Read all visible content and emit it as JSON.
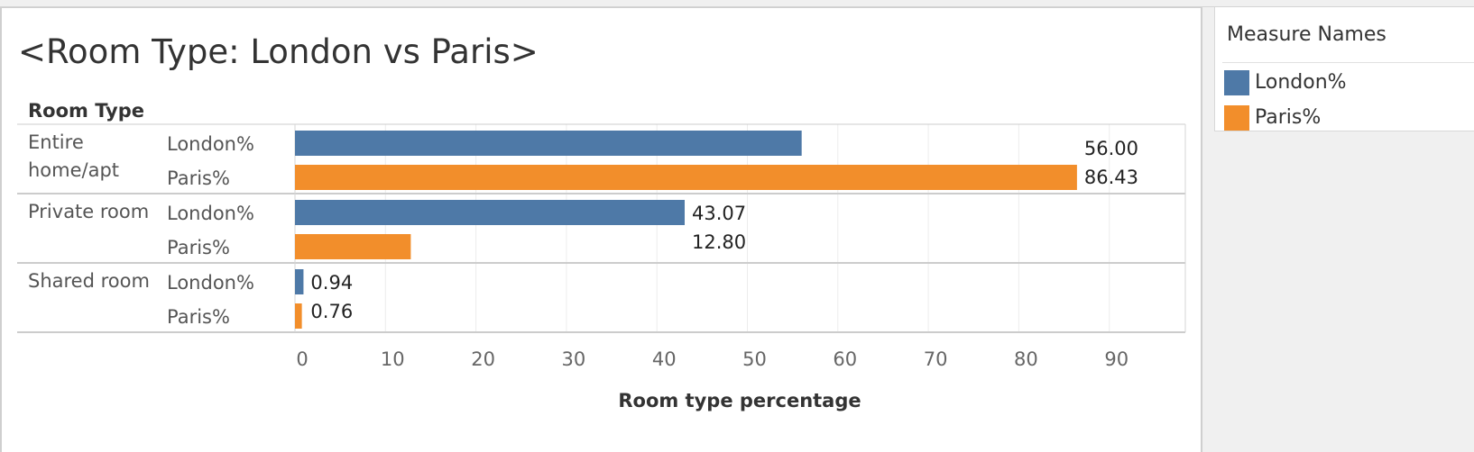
{
  "title": "<Room Type: London vs Paris>",
  "legend": {
    "title": "Measure Names",
    "items": [
      {
        "label": "London%",
        "color": "#4e79a7"
      },
      {
        "label": "Paris%",
        "color": "#f28e2b"
      }
    ]
  },
  "chart_data": {
    "type": "bar",
    "orientation": "horizontal",
    "title": "<Room Type: London vs Paris>",
    "row_header": "Room Type",
    "xlabel": "Room type percentage",
    "xlim": [
      0,
      98
    ],
    "xticks": [
      0,
      10,
      20,
      30,
      40,
      50,
      60,
      70,
      80,
      90
    ],
    "grid": true,
    "legend_position": "right",
    "categories": [
      {
        "name": "Entire home/apt",
        "lines": [
          "Entire",
          "home/apt"
        ]
      },
      {
        "name": "Private room",
        "lines": [
          "Private room"
        ]
      },
      {
        "name": "Shared room",
        "lines": [
          "Shared room"
        ]
      }
    ],
    "series": [
      {
        "name": "London%",
        "color": "#4e79a7",
        "values": [
          56.0,
          43.07,
          0.94
        ],
        "labels": [
          "56.00",
          "43.07",
          "0.94"
        ]
      },
      {
        "name": "Paris%",
        "color": "#f28e2b",
        "values": [
          86.43,
          12.8,
          0.76
        ],
        "labels": [
          "86.43",
          "12.80",
          "0.76"
        ]
      }
    ]
  }
}
